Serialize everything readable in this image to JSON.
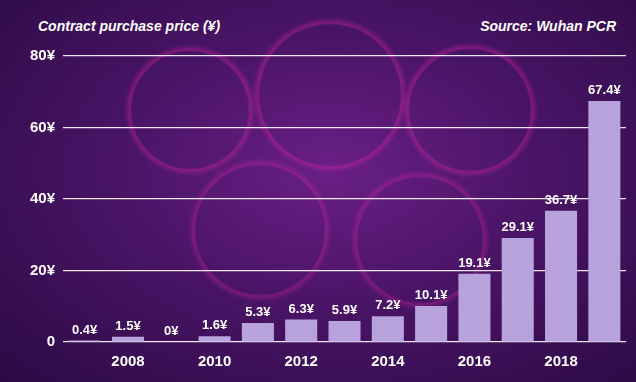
{
  "chart_data": {
    "type": "bar",
    "title": "Contract purchase price (¥)",
    "source": "Source: Wuhan PCR",
    "categories": [
      null,
      "2008",
      null,
      "2010",
      null,
      "2012",
      null,
      "2014",
      null,
      "2016",
      null,
      "2018",
      null
    ],
    "values": [
      0.4,
      1.5,
      0,
      1.6,
      5.3,
      6.3,
      5.9,
      7.2,
      10.1,
      19.1,
      29.1,
      36.7,
      67.4
    ],
    "value_labels": [
      "0.4¥",
      "1.5¥",
      "0¥",
      "1.6¥",
      "5.3¥",
      "6.3¥",
      "5.9¥",
      "7.2¥",
      "10.1¥",
      "19.1¥",
      "29.1¥",
      "36.7¥",
      "67.4¥"
    ],
    "color": "#b7a2dc",
    "ylim": [
      0,
      80
    ],
    "yticks": [
      0,
      {
        "value": 20,
        "label": "20¥"
      },
      {
        "value": 40,
        "label": "40¥"
      },
      {
        "value": 60,
        "label": "60¥"
      },
      {
        "value": 80,
        "label": "80¥"
      }
    ],
    "grid": true,
    "data_labels": true
  }
}
